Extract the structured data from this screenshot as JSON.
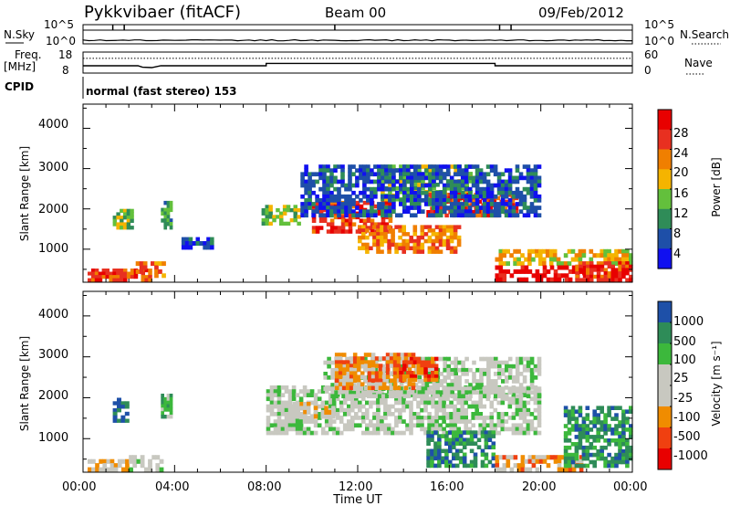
{
  "header": {
    "station": "Pykkvibaer (fitACF)",
    "beam": "Beam 00",
    "date": "09/Feb/2012"
  },
  "top_panels": {
    "nsky_label": "N.Sky",
    "nsky_ticks": [
      "10^5",
      "10^0"
    ],
    "nsearch_label": "N.Search",
    "nsearch_ticks": [
      "10^5",
      "10^0"
    ],
    "freq_label_1": "Freq.",
    "freq_label_2": "[MHz]",
    "freq_ticks": [
      "18",
      "8"
    ],
    "nave_label": "Nave",
    "nave_ticks": [
      "60",
      "0"
    ],
    "cpid_label": "CPID",
    "cpid_text": "normal (fast stereo) 153"
  },
  "colors": {
    "power_scale": [
      "#1010f0",
      "#1e4fa8",
      "#2f8c58",
      "#63c03c",
      "#f5b400",
      "#f07f00",
      "#e83020",
      "#e80000"
    ],
    "velocity_scale": [
      "#e80000",
      "#f04010",
      "#f08c00",
      "#c8c8c0",
      "#c8c8c0",
      "#3cb83c",
      "#2e8c58",
      "#1e50a8"
    ]
  },
  "chart_data": [
    {
      "type": "line",
      "title": "N.Sky / N.Search",
      "x_ticks": [
        "00:00",
        "04:00",
        "08:00",
        "12:00",
        "16:00",
        "20:00",
        "00:00"
      ],
      "y_left_ticks": [
        "10^5",
        "10^0"
      ],
      "y_right_ticks": [
        "10^5",
        "10^0"
      ],
      "scale": "log",
      "grid": false
    },
    {
      "type": "line",
      "title": "Freq. [MHz] / Nave",
      "ylim_left": [
        8,
        18
      ],
      "ylim_right": [
        0,
        60
      ],
      "series": [
        {
          "name": "Freq.",
          "x": [
            0,
            2.4,
            2.6,
            3.0,
            3.4,
            8.0,
            8.0,
            18.0,
            18.0,
            24
          ],
          "values": [
            11.5,
            11.5,
            10.8,
            10.6,
            11.5,
            11.5,
            12.6,
            12.6,
            11.5,
            11.5
          ]
        },
        {
          "name": "Nave",
          "x": [
            0,
            24
          ],
          "values": [
            42,
            42
          ]
        }
      ]
    },
    {
      "type": "heatmap",
      "xlabel": "Time UT",
      "ylabel": "Slant Range [km]",
      "x_ticks": [
        "00:00",
        "04:00",
        "08:00",
        "12:00",
        "16:00",
        "20:00",
        "00:00"
      ],
      "y_ticks": [
        "1000",
        "2000",
        "3000",
        "4000"
      ],
      "xlim": [
        0,
        24
      ],
      "ylim": [
        180,
        4600
      ],
      "colorbar_label": "Power [dB]",
      "colorbar_ticks": [
        "4",
        "8",
        "12",
        "16",
        "20",
        "24",
        "28"
      ],
      "regions": [
        {
          "x": [
            0.2,
            3.0
          ],
          "y": [
            200,
            520
          ],
          "level": 6
        },
        {
          "x": [
            1.3,
            2.2
          ],
          "y": [
            1500,
            2000
          ],
          "level": 3
        },
        {
          "x": [
            2.3,
            3.6
          ],
          "y": [
            300,
            700
          ],
          "level": 5
        },
        {
          "x": [
            3.4,
            3.9
          ],
          "y": [
            1500,
            2200
          ],
          "level": 2
        },
        {
          "x": [
            4.3,
            5.7
          ],
          "y": [
            1000,
            1300
          ],
          "level": 1
        },
        {
          "x": [
            7.8,
            9.5
          ],
          "y": [
            1600,
            2100
          ],
          "level": 3
        },
        {
          "x": [
            10.0,
            13.5
          ],
          "y": [
            1400,
            2200
          ],
          "level": 6
        },
        {
          "x": [
            12.0,
            16.5
          ],
          "y": [
            900,
            1600
          ],
          "level": 5
        },
        {
          "x": [
            13.0,
            17.0
          ],
          "y": [
            2200,
            3100
          ],
          "level": 3
        },
        {
          "x": [
            15.0,
            19.0
          ],
          "y": [
            1800,
            2400
          ],
          "level": 6
        },
        {
          "x": [
            18.0,
            24.0
          ],
          "y": [
            600,
            1000
          ],
          "level": 4
        },
        {
          "x": [
            18.0,
            22.0
          ],
          "y": [
            200,
            600
          ],
          "level": 7
        },
        {
          "x": [
            21.5,
            24.0
          ],
          "y": [
            200,
            700
          ],
          "level": 6
        },
        {
          "x": [
            9.5,
            20.0
          ],
          "y": [
            1800,
            3100
          ],
          "level": 1
        }
      ]
    },
    {
      "type": "heatmap",
      "xlabel": "Time UT",
      "ylabel": "Slant Range [km]",
      "x_ticks": [
        "00:00",
        "04:00",
        "08:00",
        "12:00",
        "16:00",
        "20:00",
        "00:00"
      ],
      "y_ticks": [
        "1000",
        "2000",
        "3000",
        "4000"
      ],
      "xlim": [
        0,
        24
      ],
      "ylim": [
        180,
        4600
      ],
      "colorbar_label": "Velocity [m s⁻¹]",
      "colorbar_ticks": [
        "1000",
        "500",
        "100",
        "25",
        "-25",
        "-100",
        "-500",
        "-1000"
      ],
      "regions": [
        {
          "x": [
            0.2,
            2.0
          ],
          "y": [
            200,
            500
          ],
          "level": 3
        },
        {
          "x": [
            2.0,
            3.5
          ],
          "y": [
            200,
            600
          ],
          "level": 4
        },
        {
          "x": [
            1.3,
            2.0
          ],
          "y": [
            1400,
            2000
          ],
          "level": 7
        },
        {
          "x": [
            3.4,
            3.9
          ],
          "y": [
            1500,
            2100
          ],
          "level": 5
        },
        {
          "x": [
            8.0,
            20.0
          ],
          "y": [
            1100,
            2300
          ],
          "level": 4
        },
        {
          "x": [
            10.5,
            20.0
          ],
          "y": [
            2000,
            3000
          ],
          "level": 4
        },
        {
          "x": [
            11.0,
            14.5
          ],
          "y": [
            2200,
            3100
          ],
          "level": 2
        },
        {
          "x": [
            13.8,
            15.5
          ],
          "y": [
            2400,
            3000
          ],
          "level": 1
        },
        {
          "x": [
            15.0,
            18.0
          ],
          "y": [
            300,
            1200
          ],
          "level": 6
        },
        {
          "x": [
            18.0,
            22.0
          ],
          "y": [
            200,
            600
          ],
          "level": 2
        },
        {
          "x": [
            21.0,
            24.0
          ],
          "y": [
            300,
            1800
          ],
          "level": 6
        },
        {
          "x": [
            9.0,
            11.0
          ],
          "y": [
            1500,
            1900
          ],
          "level": 3
        }
      ]
    }
  ]
}
